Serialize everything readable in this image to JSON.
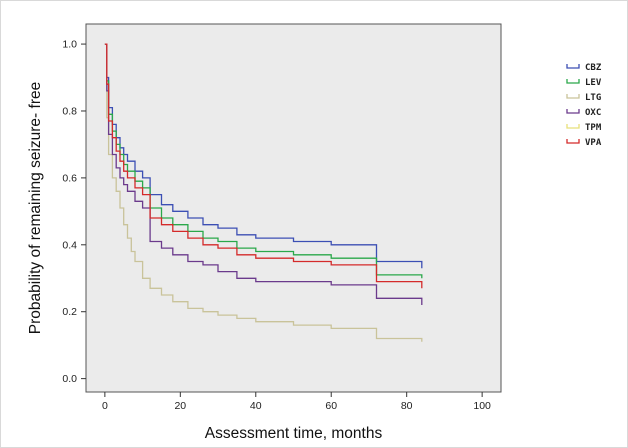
{
  "chart_data": {
    "type": "line",
    "title": "",
    "xlabel": "Assessment time, months",
    "ylabel": "Probability of remaining seizure- free",
    "xlim": [
      -5,
      105
    ],
    "ylim": [
      -0.04,
      1.06
    ],
    "x_ticks": [
      0,
      20,
      40,
      60,
      80,
      100
    ],
    "y_ticks": [
      0.0,
      0.2,
      0.4,
      0.6,
      0.8,
      1.0
    ],
    "x_tick_labels": [
      "0",
      "20",
      "40",
      "60",
      "80",
      "100"
    ],
    "y_tick_labels": [
      "0.0",
      "0.2",
      "0.4",
      "0.6",
      "0.8",
      "1.0"
    ],
    "grid": false,
    "legend_position": "right",
    "plot_background": "#ebebeb",
    "series": [
      {
        "name": "CBZ",
        "color": "#3c4fb4",
        "x": [
          0,
          0.5,
          1,
          2,
          3,
          4,
          5,
          6,
          8,
          10,
          12,
          15,
          18,
          22,
          26,
          30,
          35,
          40,
          50,
          60,
          72,
          84
        ],
        "y": [
          1.0,
          0.9,
          0.81,
          0.76,
          0.72,
          0.69,
          0.67,
          0.65,
          0.62,
          0.6,
          0.55,
          0.52,
          0.5,
          0.48,
          0.46,
          0.45,
          0.43,
          0.42,
          0.41,
          0.4,
          0.35,
          0.33
        ]
      },
      {
        "name": "LEV",
        "color": "#2aa84a",
        "x": [
          0,
          0.5,
          1,
          2,
          3,
          4,
          5,
          6,
          8,
          10,
          12,
          15,
          18,
          22,
          26,
          30,
          35,
          40,
          50,
          60,
          72,
          84
        ],
        "y": [
          1.0,
          0.89,
          0.79,
          0.74,
          0.7,
          0.67,
          0.64,
          0.62,
          0.59,
          0.57,
          0.51,
          0.48,
          0.46,
          0.44,
          0.42,
          0.41,
          0.39,
          0.38,
          0.37,
          0.36,
          0.31,
          0.3
        ]
      },
      {
        "name": "LTG",
        "color": "#c9c39a",
        "x": [
          0,
          0.5,
          1,
          2,
          3,
          4,
          5,
          6,
          7,
          8,
          10,
          12,
          15,
          18,
          22,
          26,
          30,
          35,
          40,
          50,
          60,
          72,
          84
        ],
        "y": [
          1.0,
          0.78,
          0.67,
          0.6,
          0.56,
          0.51,
          0.46,
          0.42,
          0.38,
          0.35,
          0.3,
          0.27,
          0.25,
          0.23,
          0.21,
          0.2,
          0.19,
          0.18,
          0.17,
          0.16,
          0.15,
          0.12,
          0.11
        ]
      },
      {
        "name": "OXC",
        "color": "#6b3a8c",
        "x": [
          0,
          0.5,
          1,
          2,
          3,
          4,
          5,
          6,
          8,
          10,
          12,
          15,
          18,
          22,
          26,
          30,
          35,
          40,
          50,
          60,
          72,
          84
        ],
        "y": [
          1.0,
          0.86,
          0.73,
          0.67,
          0.63,
          0.6,
          0.58,
          0.56,
          0.53,
          0.51,
          0.41,
          0.39,
          0.37,
          0.35,
          0.34,
          0.32,
          0.3,
          0.29,
          0.29,
          0.28,
          0.24,
          0.22
        ]
      },
      {
        "name": "TPM",
        "color": "#e8e07a",
        "x": [],
        "y": []
      },
      {
        "name": "VPA",
        "color": "#d42a2a",
        "x": [
          0,
          0.5,
          1,
          2,
          3,
          4,
          5,
          6,
          8,
          10,
          12,
          15,
          18,
          22,
          26,
          30,
          35,
          40,
          50,
          60,
          72,
          84
        ],
        "y": [
          1.0,
          0.88,
          0.77,
          0.72,
          0.68,
          0.65,
          0.62,
          0.6,
          0.57,
          0.55,
          0.48,
          0.46,
          0.44,
          0.42,
          0.4,
          0.39,
          0.37,
          0.36,
          0.35,
          0.34,
          0.29,
          0.27
        ]
      }
    ]
  }
}
